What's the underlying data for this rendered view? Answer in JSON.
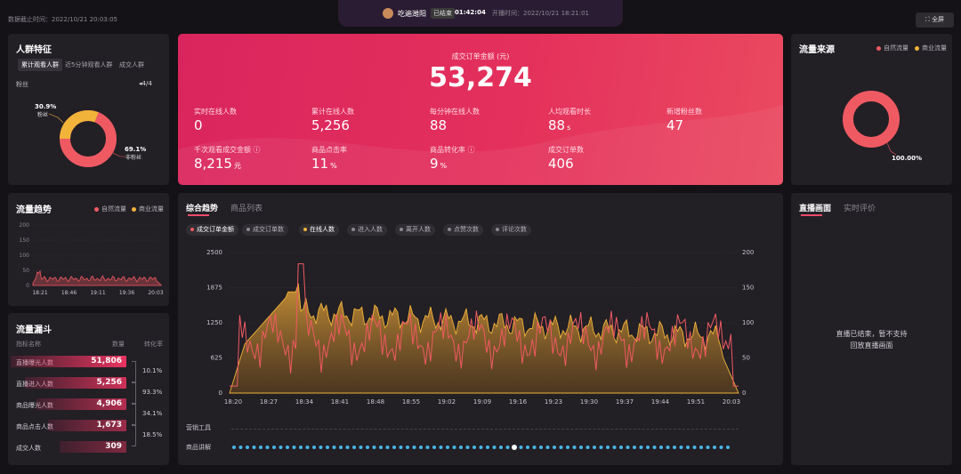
{
  "topbar": {
    "data_time": "数据截止时间：2022/10/21 20:03:05",
    "room_name": "吃遍潍阳",
    "status_badge": "已结束",
    "duration": "01:42:04",
    "start_time": "开播时间：2022/10/21 18:21:01",
    "fullscreen_label": "全屏"
  },
  "audience": {
    "title": "人群特征",
    "tabs": [
      "累计观看人群",
      "近5分钟观看人群",
      "成交人群"
    ],
    "filter_label": "粉丝",
    "pager": "4/4",
    "fans_pct": "30.9%",
    "fans_label": "粉丝",
    "nonfans_pct": "69.1%",
    "nonfans_label": "非粉丝",
    "fans_value": 30.9,
    "colors": {
      "fans": "#f2b33a",
      "nonfans": "#ef5a62"
    }
  },
  "traffic_trend": {
    "title": "流量趋势",
    "legend": [
      "自然流量",
      "商业流量"
    ],
    "y_ticks": [
      "200",
      "150",
      "100",
      "50",
      "0"
    ],
    "x_ticks": [
      "18:21",
      "18:46",
      "19:11",
      "19:36",
      "20:03"
    ]
  },
  "funnel": {
    "title": "流量漏斗",
    "col_name": "指标名称",
    "col_count": "数量",
    "col_rate": "转化率",
    "rows": [
      {
        "label": "直播曝光人数",
        "value": "51,806",
        "fill": 1.0
      },
      {
        "label": "直播进入人数",
        "value": "5,256",
        "fill": 0.88
      },
      {
        "label": "商品曝光人数",
        "value": "4,906",
        "fill": 0.78
      },
      {
        "label": "商品点击人数",
        "value": "1,673",
        "fill": 0.68
      },
      {
        "label": "成交人数",
        "value": "309",
        "fill": 0.58
      }
    ],
    "rates": [
      "10.1%",
      "93.3%",
      "34.1%",
      "18.5%"
    ]
  },
  "hero": {
    "main_label": "成交订单金额 (元)",
    "main_value": "53,274",
    "metrics": [
      {
        "label": "实时在线人数",
        "value": "0",
        "unit": ""
      },
      {
        "label": "累计在线人数",
        "value": "5,256",
        "unit": ""
      },
      {
        "label": "每分钟在线人数",
        "value": "88",
        "unit": ""
      },
      {
        "label": "人均观看时长",
        "value": "88",
        "unit": "s"
      },
      {
        "label": "新增粉丝数",
        "value": "47",
        "unit": ""
      },
      {
        "label": "千次观看成交金额 ⓘ",
        "value": "8,215",
        "unit": "元"
      },
      {
        "label": "商品点击率",
        "value": "11",
        "unit": "%"
      },
      {
        "label": "商品转化率 ⓘ",
        "value": "9",
        "unit": "%"
      },
      {
        "label": "成交订单数",
        "value": "406",
        "unit": ""
      }
    ]
  },
  "trend": {
    "tabs": [
      "综合趋势",
      "商品列表"
    ],
    "chips": [
      {
        "label": "成交订单金额",
        "color": "#ef5a62",
        "on": true
      },
      {
        "label": "成交订单数",
        "color": "#8c8891",
        "on": false
      },
      {
        "label": "在线人数",
        "color": "#f2b33a",
        "on": true
      },
      {
        "label": "进入人数",
        "color": "#8c8891",
        "on": false
      },
      {
        "label": "离开人数",
        "color": "#8c8891",
        "on": false
      },
      {
        "label": "点赞次数",
        "color": "#8c8891",
        "on": false
      },
      {
        "label": "评论次数",
        "color": "#8c8891",
        "on": false
      }
    ],
    "y_left": [
      "2500",
      "1875",
      "1250",
      "625",
      "0"
    ],
    "y_right": [
      "200",
      "150",
      "100",
      "50",
      "0"
    ],
    "x_ticks": [
      "18:20",
      "18:27",
      "18:34",
      "18:41",
      "18:48",
      "18:55",
      "19:02",
      "19:09",
      "19:16",
      "19:23",
      "19:30",
      "19:37",
      "19:44",
      "19:51",
      "20:03"
    ],
    "row_tools": "营销工具",
    "row_explain": "商品讲解"
  },
  "traffic_source": {
    "title": "流量来源",
    "legend": [
      "自然流量",
      "商业流量"
    ],
    "pct": "100.00%",
    "colors": {
      "natural": "#ef5a62",
      "commercial": "#f2b33a"
    }
  },
  "live_screen": {
    "tabs": [
      "直播画面",
      "实时评价"
    ],
    "message_line1": "直播已结束，暂不支持",
    "message_line2": "回放直播画面"
  }
}
